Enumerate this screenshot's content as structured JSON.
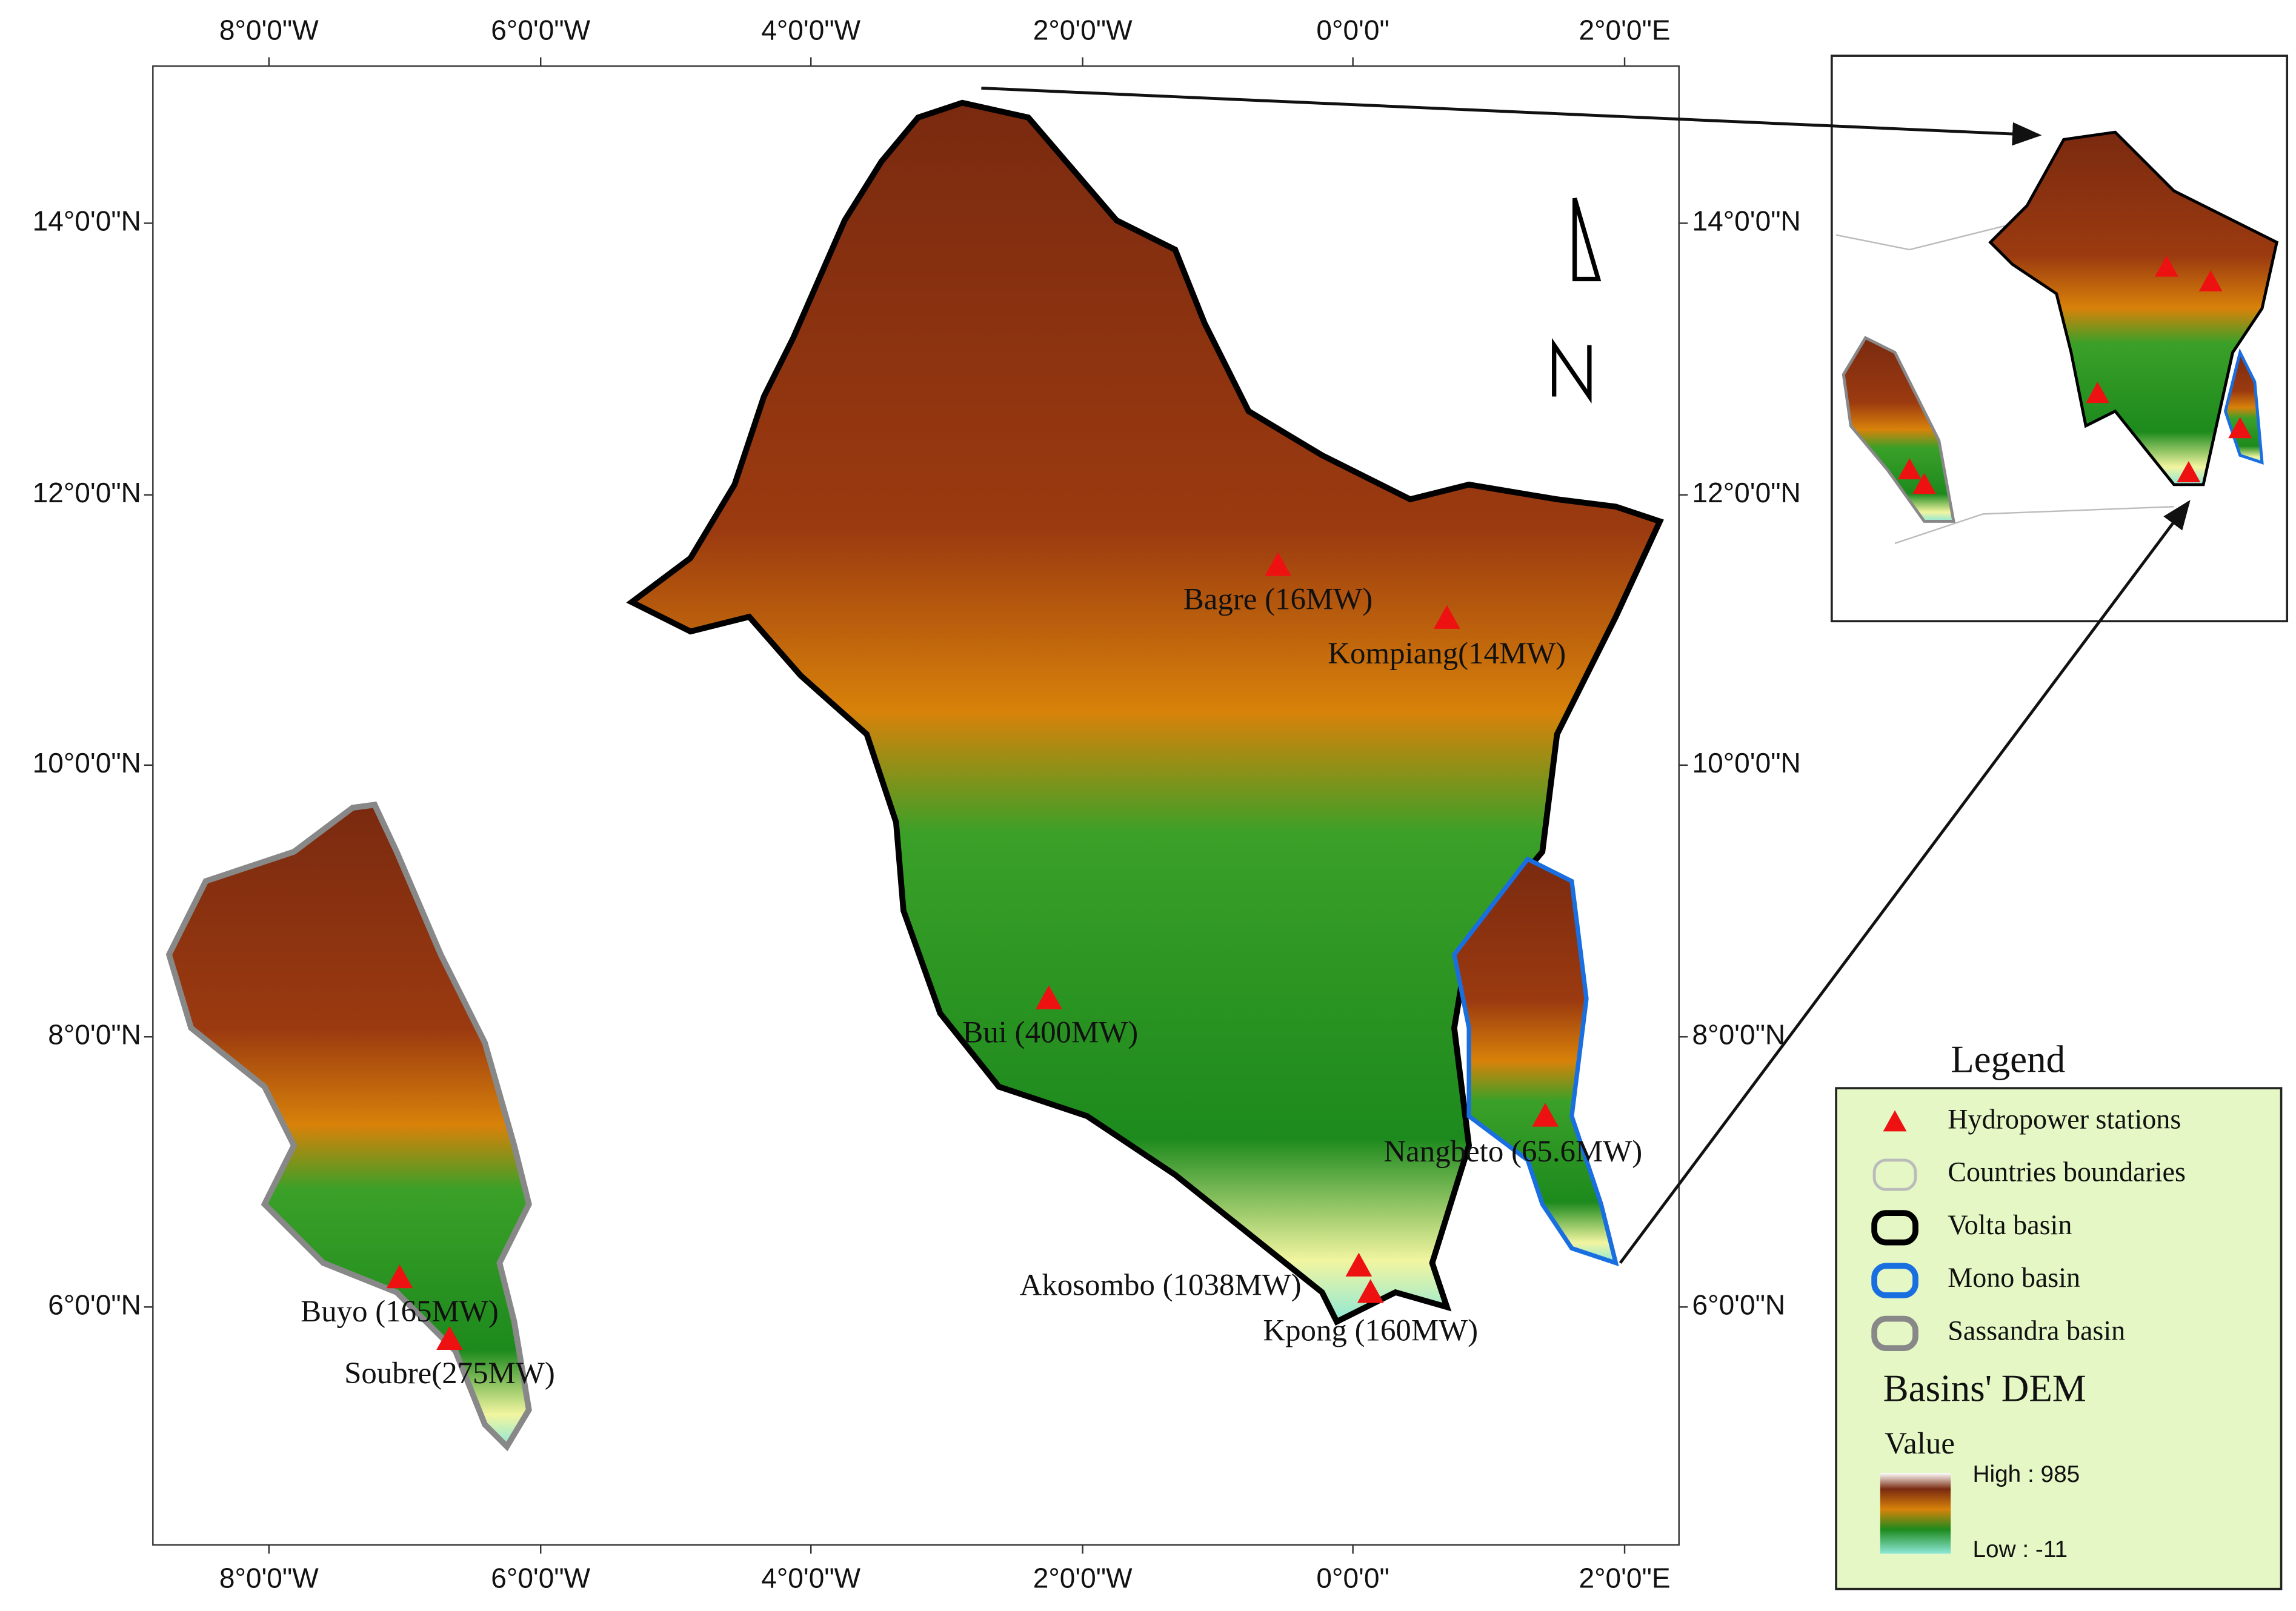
{
  "map": {
    "lon_ticks": [
      "8°0'0\"W",
      "6°0'0\"W",
      "4°0'0\"W",
      "2°0'0\"W",
      "0°0'0\"",
      "2°0'0\"E"
    ],
    "lat_ticks": [
      "14°0'0\"N",
      "12°0'0\"N",
      "10°0'0\"N",
      "8°0'0\"N",
      "6°0'0\"N"
    ],
    "stations": [
      {
        "label": "Bagre (16MW)"
      },
      {
        "label": "Kompiang(14MW)"
      },
      {
        "label": "Bui (400MW)"
      },
      {
        "label": "Nangbeto (65.6MW)"
      },
      {
        "label": "Akosombo (1038MW)"
      },
      {
        "label": "Kpong (160MW)"
      },
      {
        "label": "Buyo (165MW)"
      },
      {
        "label": "Soubre(275MW)"
      }
    ],
    "legend": {
      "title": "Legend",
      "items": [
        "Hydropower stations",
        "Countries boundaries",
        "Volta basin",
        "Mono basin",
        "Sassandra basin"
      ],
      "dem_title": "Basins' DEM",
      "value_label": "Value",
      "high": "High : 985",
      "low": "Low : -11"
    }
  }
}
